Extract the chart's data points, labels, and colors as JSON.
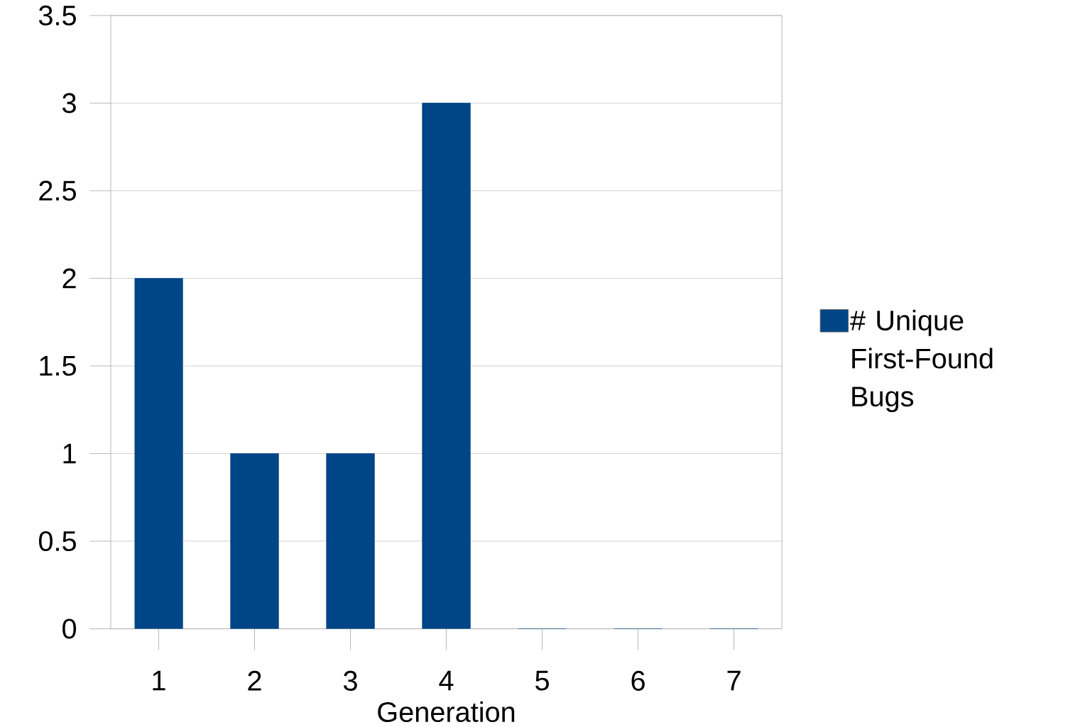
{
  "chart_data": {
    "type": "bar",
    "xlabel": "Generation",
    "categories": [
      "1",
      "2",
      "3",
      "4",
      "5",
      "6",
      "7"
    ],
    "series": [
      {
        "name": "# Unique First-Found Bugs",
        "color": "#004586",
        "values": [
          2,
          1,
          1,
          3,
          0,
          0,
          0
        ]
      }
    ],
    "ylim": [
      0,
      3.5
    ],
    "yticks": [
      0,
      0.5,
      1,
      1.5,
      2,
      2.5,
      3,
      3.5
    ],
    "grid": "y",
    "legend": "right"
  }
}
